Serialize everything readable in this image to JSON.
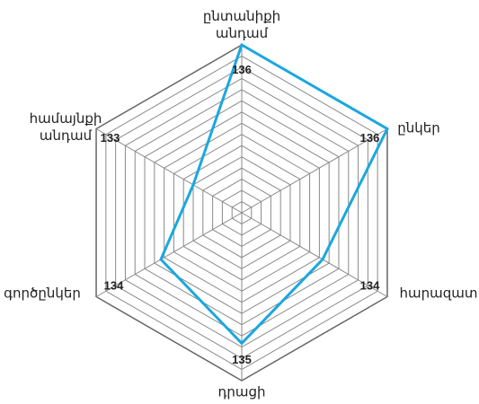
{
  "chart_data": {
    "type": "radar",
    "categories": [
      "ընտանիքի\nանդամ",
      "ընկեր",
      "հարազատ",
      "դրացի",
      "գործընկեր",
      "համայնքի\nանդամ"
    ],
    "values": [
      136,
      136,
      134,
      135,
      134,
      133
    ],
    "rlim": [
      131.5,
      136
    ],
    "color": "#1aa7e0",
    "grid": true
  }
}
